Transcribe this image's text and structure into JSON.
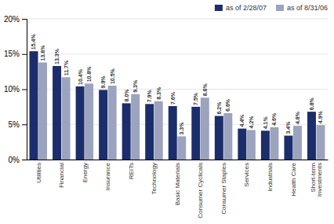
{
  "chart_data": {
    "type": "bar",
    "categories": [
      "Utilities",
      "Financial",
      "Energy",
      "Insurance",
      "REITs",
      "Technology",
      "Basic Materials",
      "Consumer Cyclicals",
      "Consumer Staples",
      "Services",
      "Industrials",
      "Health Care",
      "Short-term\nInvestments"
    ],
    "series": [
      {
        "name": "as of 2/28/07",
        "color": "#1b2d6b",
        "values": [
          15.4,
          13.3,
          10.4,
          9.9,
          8.0,
          7.9,
          7.6,
          7.5,
          6.2,
          4.4,
          4.1,
          3.4,
          6.8
        ],
        "value_labels": [
          "15.4%",
          "13.3%",
          "10.4%",
          "9.9%",
          "8.0%",
          "7.9%",
          "7.6%",
          "7.5%",
          "6.2%",
          "4.4%",
          "4.1%",
          "3.4%",
          "6.8%"
        ]
      },
      {
        "name": "as of 8/31/06",
        "color": "#9ba3be",
        "values": [
          13.8,
          11.7,
          10.8,
          10.5,
          9.3,
          8.3,
          3.3,
          8.8,
          6.6,
          4.2,
          4.6,
          4.8,
          4.9
        ],
        "value_labels": [
          "13.8%",
          "11.7%",
          "10.8%",
          "10.5%",
          "9.3%",
          "8.3%",
          "3.3%",
          "8.8%",
          "6.6%",
          "4.2%",
          "4.6%",
          "4.8%",
          "4.9%"
        ]
      }
    ],
    "ylim": [
      0,
      20
    ],
    "yticks": [
      {
        "value": 0,
        "label": "0%"
      },
      {
        "value": 5,
        "label": "5%"
      },
      {
        "value": 10,
        "label": "10%"
      },
      {
        "value": 15,
        "label": "15%"
      },
      {
        "value": 20,
        "label": "20%"
      }
    ],
    "grid": true,
    "legend": "upper-right",
    "data_labels": true
  }
}
